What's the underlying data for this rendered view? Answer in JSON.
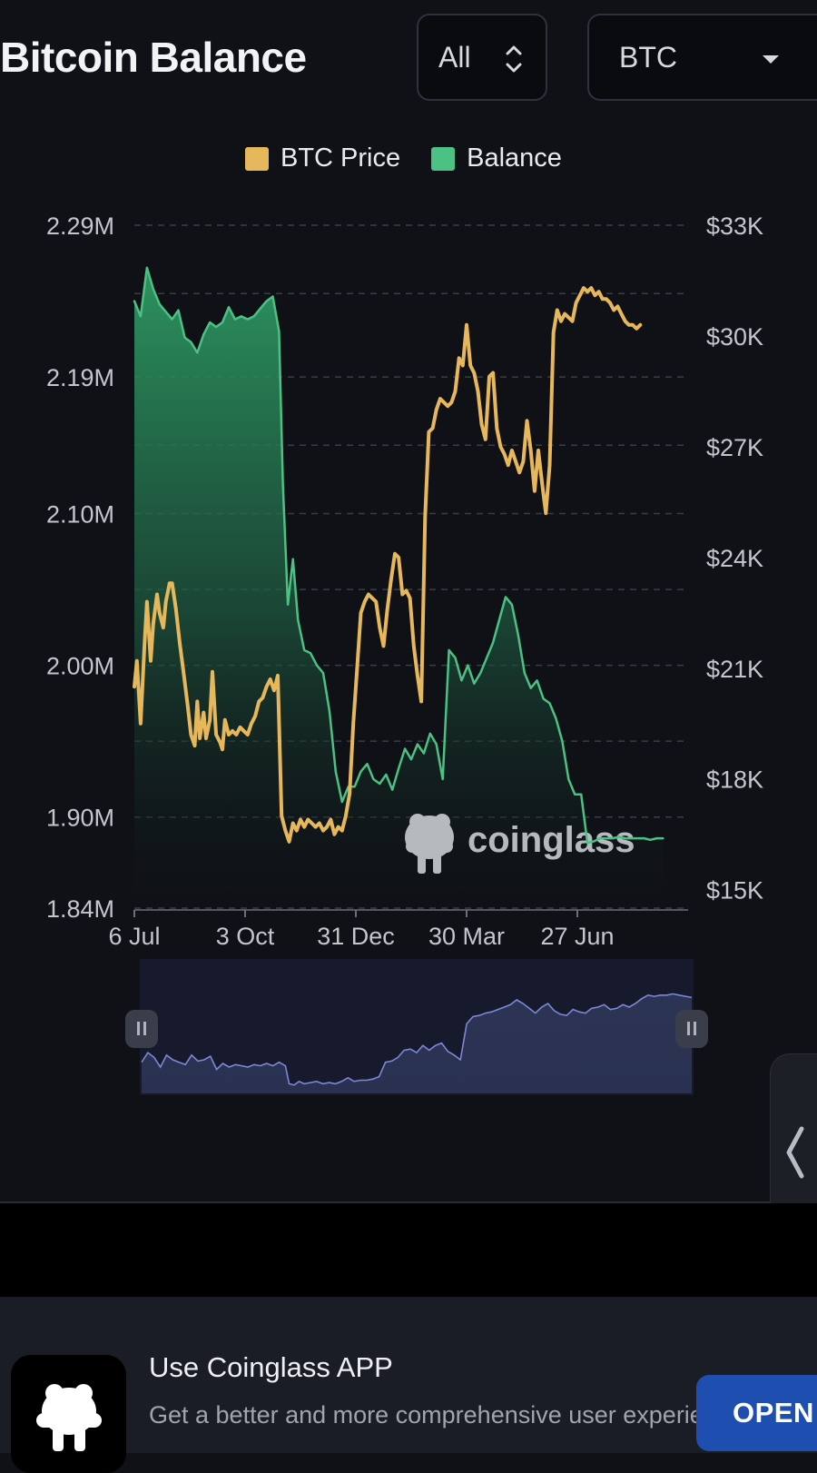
{
  "header": {
    "title": "Bitcoin Balance",
    "range_select": {
      "value": "All"
    },
    "coin_select": {
      "value": "BTC"
    }
  },
  "chart_data": {
    "type": "line",
    "legend": [
      {
        "name": "BTC Price",
        "color": "#e7b85b"
      },
      {
        "name": "Balance",
        "color": "#4cc184"
      }
    ],
    "x_tick_labels": [
      "6 Jul",
      "3 Oct",
      "31 Dec",
      "30 Mar",
      "27 Jun"
    ],
    "y_left": {
      "ticks": [
        "2.29M",
        "2.19M",
        "2.10M",
        "2.00M",
        "1.90M",
        "1.84M"
      ],
      "values": [
        2.29,
        2.19,
        2.1,
        2.0,
        1.9,
        1.84
      ],
      "unit": "M"
    },
    "y_right": {
      "ticks": [
        "$33K",
        "$30K",
        "$27K",
        "$24K",
        "$21K",
        "$18K",
        "$15K"
      ],
      "values": [
        33,
        30,
        27,
        24,
        21,
        18,
        15
      ],
      "unit": "K USD"
    },
    "grid": true,
    "legend_position": "top-center",
    "watermark": "coinglass",
    "x_days_domain": [
      0,
      440
    ],
    "series": [
      {
        "name": "Balance",
        "axis": "left",
        "area": true,
        "color": "#4cc184",
        "points": [
          [
            0,
            2.24
          ],
          [
            5,
            2.23
          ],
          [
            10,
            2.262
          ],
          [
            15,
            2.248
          ],
          [
            20,
            2.238
          ],
          [
            25,
            2.233
          ],
          [
            30,
            2.228
          ],
          [
            35,
            2.234
          ],
          [
            40,
            2.216
          ],
          [
            45,
            2.213
          ],
          [
            50,
            2.206
          ],
          [
            55,
            2.218
          ],
          [
            60,
            2.226
          ],
          [
            65,
            2.223
          ],
          [
            70,
            2.226
          ],
          [
            75,
            2.236
          ],
          [
            80,
            2.228
          ],
          [
            85,
            2.23
          ],
          [
            90,
            2.228
          ],
          [
            95,
            2.23
          ],
          [
            100,
            2.235
          ],
          [
            105,
            2.24
          ],
          [
            110,
            2.243
          ],
          [
            115,
            2.22
          ],
          [
            118,
            2.12
          ],
          [
            122,
            2.04
          ],
          [
            126,
            2.07
          ],
          [
            130,
            2.03
          ],
          [
            135,
            2.01
          ],
          [
            140,
            2.008
          ],
          [
            145,
            2.0
          ],
          [
            150,
            1.995
          ],
          [
            155,
            1.97
          ],
          [
            160,
            1.93
          ],
          [
            165,
            1.91
          ],
          [
            170,
            1.92
          ],
          [
            175,
            1.92
          ],
          [
            180,
            1.93
          ],
          [
            185,
            1.935
          ],
          [
            190,
            1.925
          ],
          [
            195,
            1.922
          ],
          [
            200,
            1.928
          ],
          [
            205,
            1.918
          ],
          [
            210,
            1.932
          ],
          [
            215,
            1.945
          ],
          [
            220,
            1.938
          ],
          [
            225,
            1.948
          ],
          [
            230,
            1.942
          ],
          [
            235,
            1.955
          ],
          [
            240,
            1.948
          ],
          [
            245,
            1.925
          ],
          [
            250,
            2.01
          ],
          [
            255,
            2.005
          ],
          [
            260,
            1.99
          ],
          [
            265,
            2.0
          ],
          [
            270,
            1.988
          ],
          [
            275,
            1.995
          ],
          [
            280,
            2.005
          ],
          [
            285,
            2.015
          ],
          [
            290,
            2.03
          ],
          [
            295,
            2.045
          ],
          [
            300,
            2.04
          ],
          [
            305,
            2.02
          ],
          [
            310,
            1.995
          ],
          [
            315,
            1.985
          ],
          [
            320,
            1.99
          ],
          [
            325,
            1.978
          ],
          [
            330,
            1.975
          ],
          [
            335,
            1.965
          ],
          [
            340,
            1.95
          ],
          [
            345,
            1.925
          ],
          [
            350,
            1.915
          ],
          [
            355,
            1.915
          ],
          [
            360,
            1.883
          ],
          [
            365,
            1.884
          ],
          [
            370,
            1.886
          ],
          [
            375,
            1.886
          ],
          [
            380,
            1.886
          ],
          [
            385,
            1.887
          ],
          [
            390,
            1.886
          ],
          [
            395,
            1.886
          ],
          [
            400,
            1.886
          ],
          [
            405,
            1.886
          ],
          [
            410,
            1.885
          ],
          [
            415,
            1.886
          ],
          [
            420,
            1.886
          ]
        ]
      },
      {
        "name": "BTC Price",
        "axis": "right",
        "area": false,
        "color": "#e7b85b",
        "points": [
          [
            0,
            20.5
          ],
          [
            2,
            21.2
          ],
          [
            5,
            19.5
          ],
          [
            8,
            21.6
          ],
          [
            10,
            22.8
          ],
          [
            13,
            21.2
          ],
          [
            15,
            22.2
          ],
          [
            18,
            23.0
          ],
          [
            20,
            22.5
          ],
          [
            23,
            22.1
          ],
          [
            25,
            22.8
          ],
          [
            28,
            23.3
          ],
          [
            30,
            23.3
          ],
          [
            33,
            22.6
          ],
          [
            36,
            21.7
          ],
          [
            39,
            20.9
          ],
          [
            42,
            20.1
          ],
          [
            45,
            19.2
          ],
          [
            48,
            18.9
          ],
          [
            50,
            20.1
          ],
          [
            52,
            19.1
          ],
          [
            55,
            19.8
          ],
          [
            57,
            19.1
          ],
          [
            60,
            19.6
          ],
          [
            62,
            20.9
          ],
          [
            65,
            19.2
          ],
          [
            68,
            19.0
          ],
          [
            70,
            18.8
          ],
          [
            72,
            19.6
          ],
          [
            75,
            19.2
          ],
          [
            78,
            19.3
          ],
          [
            81,
            19.2
          ],
          [
            84,
            19.4
          ],
          [
            87,
            19.3
          ],
          [
            90,
            19.2
          ],
          [
            93,
            19.5
          ],
          [
            96,
            19.7
          ],
          [
            99,
            20.1
          ],
          [
            102,
            20.2
          ],
          [
            105,
            20.5
          ],
          [
            108,
            20.7
          ],
          [
            111,
            20.4
          ],
          [
            114,
            20.8
          ],
          [
            117,
            17.0
          ],
          [
            120,
            16.6
          ],
          [
            123,
            16.3
          ],
          [
            126,
            16.8
          ],
          [
            129,
            16.6
          ],
          [
            132,
            16.9
          ],
          [
            135,
            16.7
          ],
          [
            138,
            16.9
          ],
          [
            141,
            16.8
          ],
          [
            144,
            16.7
          ],
          [
            147,
            16.8
          ],
          [
            150,
            16.6
          ],
          [
            153,
            16.7
          ],
          [
            156,
            16.9
          ],
          [
            159,
            16.5
          ],
          [
            162,
            16.7
          ],
          [
            165,
            16.6
          ],
          [
            168,
            17.0
          ],
          [
            171,
            17.6
          ],
          [
            174,
            19.5
          ],
          [
            177,
            21.0
          ],
          [
            180,
            22.5
          ],
          [
            183,
            22.8
          ],
          [
            186,
            23.0
          ],
          [
            189,
            22.9
          ],
          [
            192,
            22.8
          ],
          [
            195,
            22.1
          ],
          [
            198,
            21.6
          ],
          [
            201,
            22.6
          ],
          [
            204,
            23.4
          ],
          [
            207,
            24.1
          ],
          [
            210,
            24.0
          ],
          [
            213,
            23.0
          ],
          [
            216,
            23.1
          ],
          [
            219,
            22.9
          ],
          [
            222,
            21.6
          ],
          [
            225,
            20.8
          ],
          [
            228,
            20.1
          ],
          [
            231,
            25.1
          ],
          [
            234,
            27.4
          ],
          [
            237,
            27.5
          ],
          [
            240,
            28.0
          ],
          [
            243,
            28.3
          ],
          [
            246,
            28.2
          ],
          [
            249,
            28.1
          ],
          [
            252,
            28.2
          ],
          [
            255,
            28.5
          ],
          [
            258,
            29.4
          ],
          [
            261,
            29.2
          ],
          [
            264,
            30.3
          ],
          [
            267,
            29.2
          ],
          [
            270,
            29.0
          ],
          [
            273,
            28.5
          ],
          [
            276,
            27.6
          ],
          [
            279,
            27.2
          ],
          [
            282,
            28.9
          ],
          [
            285,
            29.0
          ],
          [
            288,
            27.5
          ],
          [
            291,
            27.0
          ],
          [
            294,
            26.8
          ],
          [
            297,
            26.5
          ],
          [
            300,
            26.9
          ],
          [
            303,
            26.6
          ],
          [
            306,
            26.3
          ],
          [
            309,
            26.6
          ],
          [
            312,
            27.7
          ],
          [
            315,
            26.9
          ],
          [
            318,
            25.8
          ],
          [
            321,
            26.9
          ],
          [
            324,
            26.0
          ],
          [
            327,
            25.2
          ],
          [
            330,
            26.5
          ],
          [
            333,
            30.1
          ],
          [
            336,
            30.7
          ],
          [
            339,
            30.4
          ],
          [
            342,
            30.6
          ],
          [
            345,
            30.5
          ],
          [
            348,
            30.4
          ],
          [
            351,
            30.9
          ],
          [
            354,
            31.1
          ],
          [
            357,
            31.3
          ],
          [
            360,
            31.2
          ],
          [
            363,
            31.3
          ],
          [
            366,
            31.1
          ],
          [
            369,
            31.2
          ],
          [
            372,
            31.0
          ],
          [
            375,
            31.0
          ],
          [
            378,
            30.9
          ],
          [
            381,
            30.7
          ],
          [
            384,
            30.8
          ],
          [
            387,
            30.6
          ],
          [
            390,
            30.4
          ],
          [
            393,
            30.3
          ],
          [
            396,
            30.3
          ],
          [
            399,
            30.2
          ],
          [
            402,
            30.3
          ]
        ]
      }
    ],
    "navigator": {
      "color": "#7c88d6",
      "points": [
        [
          0,
          0.74
        ],
        [
          5,
          0.66
        ],
        [
          10,
          0.7
        ],
        [
          15,
          0.78
        ],
        [
          20,
          0.68
        ],
        [
          25,
          0.72
        ],
        [
          30,
          0.74
        ],
        [
          35,
          0.76
        ],
        [
          40,
          0.68
        ],
        [
          45,
          0.73
        ],
        [
          50,
          0.72
        ],
        [
          55,
          0.69
        ],
        [
          60,
          0.8
        ],
        [
          65,
          0.75
        ],
        [
          70,
          0.78
        ],
        [
          75,
          0.76
        ],
        [
          80,
          0.77
        ],
        [
          85,
          0.78
        ],
        [
          90,
          0.76
        ],
        [
          95,
          0.77
        ],
        [
          100,
          0.75
        ],
        [
          105,
          0.77
        ],
        [
          110,
          0.74
        ],
        [
          115,
          0.77
        ],
        [
          118,
          0.92
        ],
        [
          122,
          0.93
        ],
        [
          126,
          0.9
        ],
        [
          130,
          0.92
        ],
        [
          135,
          0.91
        ],
        [
          140,
          0.9
        ],
        [
          145,
          0.92
        ],
        [
          150,
          0.91
        ],
        [
          155,
          0.92
        ],
        [
          160,
          0.9
        ],
        [
          165,
          0.87
        ],
        [
          170,
          0.9
        ],
        [
          175,
          0.89
        ],
        [
          180,
          0.89
        ],
        [
          185,
          0.88
        ],
        [
          190,
          0.86
        ],
        [
          195,
          0.74
        ],
        [
          200,
          0.73
        ],
        [
          205,
          0.7
        ],
        [
          210,
          0.64
        ],
        [
          215,
          0.63
        ],
        [
          220,
          0.66
        ],
        [
          225,
          0.6
        ],
        [
          230,
          0.64
        ],
        [
          235,
          0.6
        ],
        [
          240,
          0.58
        ],
        [
          245,
          0.65
        ],
        [
          250,
          0.68
        ],
        [
          255,
          0.72
        ],
        [
          260,
          0.42
        ],
        [
          265,
          0.36
        ],
        [
          270,
          0.35
        ],
        [
          275,
          0.33
        ],
        [
          280,
          0.32
        ],
        [
          285,
          0.3
        ],
        [
          290,
          0.28
        ],
        [
          295,
          0.26
        ],
        [
          300,
          0.22
        ],
        [
          305,
          0.25
        ],
        [
          310,
          0.29
        ],
        [
          315,
          0.33
        ],
        [
          320,
          0.28
        ],
        [
          325,
          0.25
        ],
        [
          330,
          0.31
        ],
        [
          335,
          0.34
        ],
        [
          340,
          0.35
        ],
        [
          345,
          0.3
        ],
        [
          350,
          0.32
        ],
        [
          355,
          0.33
        ],
        [
          360,
          0.29
        ],
        [
          365,
          0.28
        ],
        [
          370,
          0.26
        ],
        [
          375,
          0.3
        ],
        [
          380,
          0.29
        ],
        [
          385,
          0.26
        ],
        [
          390,
          0.28
        ],
        [
          395,
          0.25
        ],
        [
          400,
          0.21
        ],
        [
          405,
          0.18
        ],
        [
          410,
          0.19
        ],
        [
          415,
          0.18
        ],
        [
          420,
          0.18
        ],
        [
          425,
          0.17
        ],
        [
          430,
          0.18
        ],
        [
          435,
          0.19
        ],
        [
          440,
          0.2
        ]
      ]
    }
  },
  "side_tab": {
    "icon": "chevron-left-icon"
  },
  "app_banner": {
    "title": "Use Coinglass APP",
    "subtitle": "Get a better and more comprehensive user experience",
    "button": "OPEN"
  }
}
